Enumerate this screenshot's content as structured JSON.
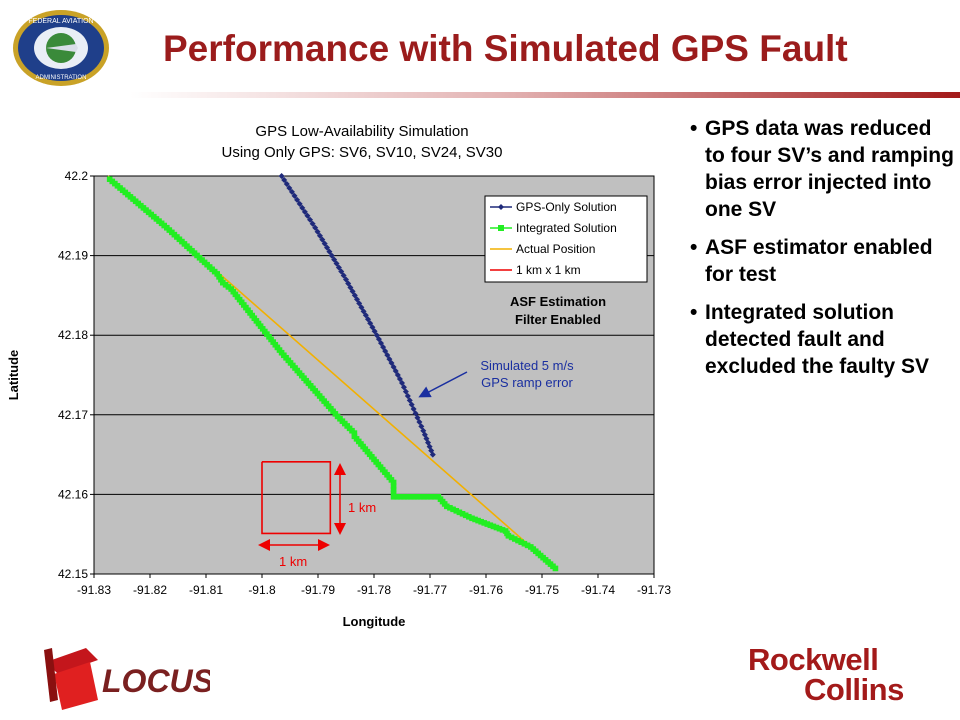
{
  "slide": {
    "title": "Performance with Simulated GPS Fault"
  },
  "logos": {
    "faa_top": "FEDERAL AVIATION",
    "faa_bottom": "ADMINISTRATION",
    "locus": "LOCUS",
    "rockwell_line1": "Rockwell",
    "rockwell_line2": "Collins"
  },
  "bullets": [
    "GPS data was reduced to four SV’s and ramping bias error injected into one SV",
    "ASF estimator enabled for test",
    "Integrated solution detected fault and excluded the faulty SV"
  ],
  "chart_data": {
    "type": "line",
    "title": "GPS Low-Availability Simulation",
    "subtitle": "Using Only GPS: SV6, SV10, SV24, SV30",
    "xlabel": "Longitude",
    "ylabel": "Latitude",
    "xlim": [
      -91.83,
      -91.73
    ],
    "ylim": [
      42.15,
      42.2
    ],
    "x_ticks": [
      "-91.83",
      "-91.82",
      "-91.81",
      "-91.8",
      "-91.79",
      "-91.78",
      "-91.77",
      "-91.76",
      "-91.75",
      "-91.74",
      "-91.73"
    ],
    "y_ticks": [
      "42.2",
      "42.19",
      "42.18",
      "42.17",
      "42.16",
      "42.15"
    ],
    "grid": true,
    "legend_position": "top-right",
    "colors": {
      "plot_bg": "#c0c0c0",
      "gps_only": "#1f2a7a",
      "integrated": "#22ee22",
      "actual": "#f2b000",
      "box": "#ee0000",
      "callout": "#1a2fa0"
    },
    "series": [
      {
        "name": "GPS-Only Solution",
        "x": [
          -91.7965,
          -91.7905,
          -91.785,
          -91.7795,
          -91.775,
          -91.7712,
          -91.7695
        ],
        "y": [
          42.2,
          42.1935,
          42.187,
          42.18,
          42.174,
          42.168,
          42.165
        ]
      },
      {
        "name": "Integrated Solution",
        "x": [
          -91.8272,
          -91.817,
          -91.808,
          -91.807,
          -91.8055,
          -91.7965,
          -91.7865,
          -91.7835,
          -91.7835,
          -91.7765,
          -91.7765,
          -91.774,
          -91.7705,
          -91.7685,
          -91.767,
          -91.7625,
          -91.7565,
          -91.756,
          -91.752,
          -91.7476
        ],
        "y": [
          42.1996,
          42.1935,
          42.1877,
          42.1866,
          42.1858,
          42.1778,
          42.1698,
          42.1677,
          42.1673,
          42.1615,
          42.1597,
          42.1597,
          42.1597,
          42.1597,
          42.1585,
          42.157,
          42.1554,
          42.1548,
          42.1534,
          42.1507
        ]
      },
      {
        "name": "Actual Position",
        "x": [
          -91.8275,
          -91.7476
        ],
        "y": [
          42.2,
          42.1507
        ]
      },
      {
        "name": "1 km x 1 km",
        "x": [
          -91.8,
          -91.7878,
          -91.7878,
          -91.8,
          -91.8
        ],
        "y": [
          42.1641,
          42.1641,
          42.1551,
          42.1551,
          42.1641
        ]
      }
    ],
    "legend_entries": [
      "GPS-Only Solution",
      "Integrated Solution",
      "Actual Position",
      "1 km x 1 km"
    ],
    "annotations": {
      "filter_line1": "ASF Estimation",
      "filter_line2": "Filter Enabled",
      "callout_line1": "Simulated 5 m/s",
      "callout_line2": "GPS ramp error",
      "km_vertical": "1 km",
      "km_horizontal": "1 km"
    }
  }
}
